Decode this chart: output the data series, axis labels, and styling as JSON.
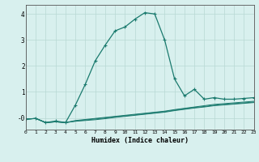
{
  "xlabel": "Humidex (Indice chaleur)",
  "background_color": "#d8f0ee",
  "grid_color": "#b8d8d4",
  "line_color": "#1a7a6e",
  "x": [
    0,
    1,
    2,
    3,
    4,
    5,
    6,
    7,
    8,
    9,
    10,
    11,
    12,
    13,
    14,
    15,
    16,
    17,
    18,
    19,
    20,
    21,
    22,
    23
  ],
  "y_main": [
    -0.05,
    -0.02,
    -0.18,
    -0.12,
    -0.18,
    0.5,
    1.3,
    2.2,
    2.8,
    3.35,
    3.5,
    3.8,
    4.05,
    4.0,
    3.0,
    1.5,
    0.85,
    1.1,
    0.72,
    0.78,
    0.72,
    0.72,
    0.75,
    0.78
  ],
  "y_line2": [
    -0.05,
    -0.02,
    -0.18,
    -0.15,
    -0.18,
    -0.1,
    -0.06,
    -0.02,
    0.02,
    0.06,
    0.1,
    0.14,
    0.18,
    0.22,
    0.26,
    0.32,
    0.37,
    0.42,
    0.47,
    0.52,
    0.55,
    0.58,
    0.61,
    0.64
  ],
  "y_line3": [
    -0.05,
    -0.02,
    -0.18,
    -0.15,
    -0.18,
    -0.12,
    -0.08,
    -0.04,
    0.0,
    0.04,
    0.08,
    0.12,
    0.16,
    0.2,
    0.24,
    0.3,
    0.35,
    0.4,
    0.44,
    0.49,
    0.52,
    0.55,
    0.58,
    0.61
  ],
  "y_line4": [
    -0.05,
    -0.02,
    -0.18,
    -0.15,
    -0.18,
    -0.13,
    -0.1,
    -0.07,
    -0.03,
    0.02,
    0.06,
    0.1,
    0.14,
    0.18,
    0.22,
    0.28,
    0.33,
    0.38,
    0.42,
    0.47,
    0.5,
    0.53,
    0.56,
    0.59
  ],
  "xlim": [
    0,
    23
  ],
  "ylim": [
    -0.45,
    4.35
  ],
  "yticks": [
    0,
    1,
    2,
    3,
    4
  ],
  "ytick_labels": [
    "-0",
    "1",
    "2",
    "3",
    "4"
  ],
  "xticks": [
    0,
    1,
    2,
    3,
    4,
    5,
    6,
    7,
    8,
    9,
    10,
    11,
    12,
    13,
    14,
    15,
    16,
    17,
    18,
    19,
    20,
    21,
    22,
    23
  ]
}
